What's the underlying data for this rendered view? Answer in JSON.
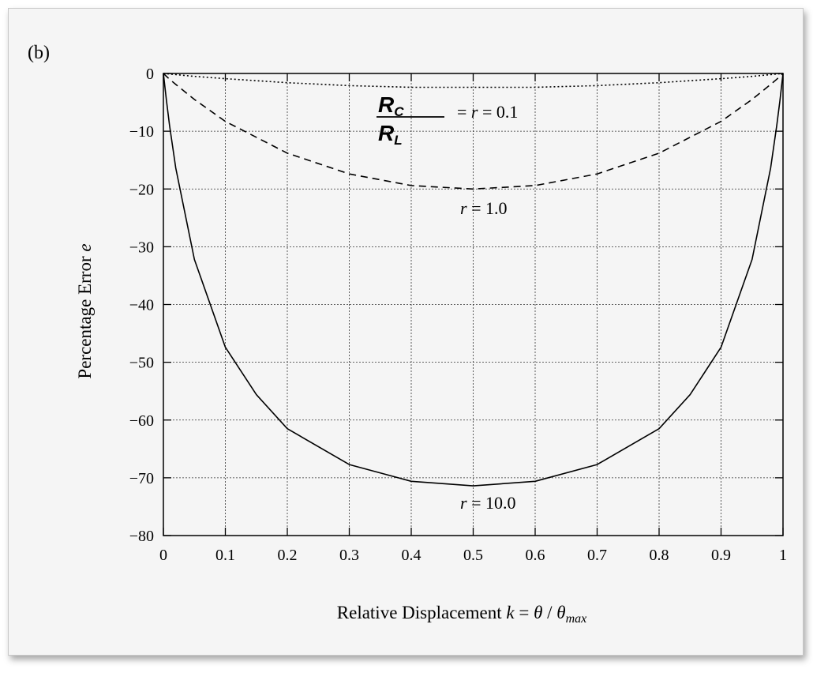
{
  "chart_data": {
    "type": "line",
    "panel_label": "(b)",
    "xlabel_main": "Relative Displacement ",
    "xlabel_k": "k",
    "xlabel_eq": " = ",
    "xlabel_theta": "θ",
    "xlabel_slash": " / ",
    "xlabel_theta_max": "θ",
    "xlabel_sub": "max",
    "ylabel_main": "Percentage Error ",
    "ylabel_e": "e",
    "xlim": [
      0,
      1
    ],
    "ylim": [
      -80,
      0
    ],
    "x_ticks": [
      0,
      0.1,
      0.2,
      0.3,
      0.4,
      0.5,
      0.6,
      0.7,
      0.8,
      0.9,
      1
    ],
    "x_tick_labels": [
      "0",
      "0.1",
      "0.2",
      "0.3",
      "0.4",
      "0.5",
      "0.6",
      "0.7",
      "0.8",
      "0.9",
      "1"
    ],
    "y_ticks": [
      0,
      -10,
      -20,
      -30,
      -40,
      -50,
      -60,
      -70,
      -80
    ],
    "y_tick_labels": [
      "0",
      "−10",
      "−20",
      "−30",
      "−40",
      "−50",
      "−60",
      "−70",
      "−80"
    ],
    "grid": true,
    "series": [
      {
        "r": 0.1,
        "style": "dotted",
        "x": [
          0,
          0.01,
          0.05,
          0.1,
          0.2,
          0.3,
          0.4,
          0.5,
          0.6,
          0.7,
          0.8,
          0.9,
          0.95,
          0.99,
          1
        ],
        "y": [
          0,
          -0.1,
          -0.5,
          -0.9,
          -1.6,
          -2.1,
          -2.4,
          -2.4,
          -2.4,
          -2.1,
          -1.6,
          -0.9,
          -0.5,
          -0.1,
          0
        ]
      },
      {
        "r": 1.0,
        "style": "dashed",
        "x": [
          0,
          0.01,
          0.02,
          0.05,
          0.1,
          0.2,
          0.3,
          0.4,
          0.5,
          0.6,
          0.7,
          0.8,
          0.9,
          0.95,
          0.98,
          0.99,
          1
        ],
        "y": [
          0,
          -1.0,
          -1.9,
          -4.5,
          -8.3,
          -13.8,
          -17.4,
          -19.4,
          -20.0,
          -19.4,
          -17.4,
          -13.8,
          -8.3,
          -4.5,
          -1.9,
          -1.0,
          0
        ]
      },
      {
        "r": 10.0,
        "style": "solid",
        "x": [
          0,
          0.005,
          0.01,
          0.02,
          0.05,
          0.1,
          0.15,
          0.2,
          0.3,
          0.4,
          0.5,
          0.6,
          0.7,
          0.8,
          0.85,
          0.9,
          0.95,
          0.98,
          0.99,
          0.995,
          1
        ],
        "y": [
          0,
          -4.7,
          -9.0,
          -16.4,
          -32.2,
          -47.4,
          -55.6,
          -61.5,
          -67.7,
          -70.6,
          -71.4,
          -70.6,
          -67.7,
          -61.5,
          -55.6,
          -47.4,
          -32.2,
          -16.4,
          -9.0,
          -4.7,
          0
        ]
      }
    ],
    "annotations": {
      "r01_frac_top": "R",
      "r01_frac_top_sub": "C",
      "r01_frac_bottom": "R",
      "r01_frac_bottom_sub": "L",
      "r01_text_eq": "= ",
      "r01_text_r": "r",
      "r01_text_val": " = 0.1",
      "r10_text_r": "r",
      "r10_text_val": " = 1.0",
      "r100_text_r": "r",
      "r100_text_val": " = 10.0"
    }
  }
}
